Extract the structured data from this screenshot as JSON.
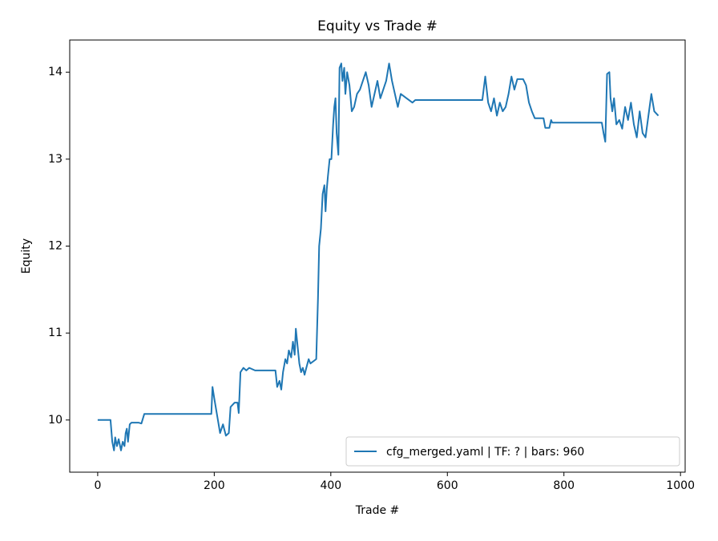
{
  "chart_data": {
    "type": "line",
    "title": "Equity vs Trade #",
    "x_label": "Trade #",
    "y_label": "Equity",
    "series": [
      {
        "name": "cfg_merged.yaml | TF: ? | bars: 960",
        "color": "#1f77b4",
        "x": [
          0,
          22,
          25,
          28,
          30,
          33,
          36,
          40,
          43,
          46,
          48,
          50,
          52,
          55,
          58,
          70,
          75,
          80,
          195,
          197,
          200,
          205,
          210,
          215,
          220,
          225,
          228,
          235,
          240,
          242,
          245,
          250,
          255,
          260,
          270,
          305,
          308,
          312,
          315,
          318,
          322,
          325,
          328,
          332,
          335,
          338,
          340,
          343,
          346,
          349,
          352,
          355,
          358,
          362,
          365,
          375,
          378,
          380,
          383,
          386,
          389,
          391,
          393,
          395,
          398,
          401,
          404,
          406,
          408,
          410,
          413,
          415,
          418,
          420,
          423,
          425,
          428,
          432,
          436,
          440,
          445,
          450,
          455,
          460,
          465,
          470,
          475,
          480,
          485,
          490,
          495,
          500,
          505,
          510,
          515,
          520,
          530,
          540,
          545,
          660,
          665,
          670,
          675,
          680,
          685,
          690,
          695,
          700,
          705,
          710,
          715,
          720,
          730,
          735,
          740,
          745,
          750,
          765,
          768,
          775,
          778,
          780,
          865,
          868,
          871,
          874,
          878,
          880,
          883,
          886,
          890,
          895,
          900,
          905,
          910,
          915,
          920,
          925,
          930,
          935,
          940,
          945,
          950,
          955,
          962
        ],
        "values": [
          10,
          10,
          9.75,
          9.65,
          9.8,
          9.7,
          9.78,
          9.65,
          9.75,
          9.7,
          9.85,
          9.9,
          9.75,
          9.95,
          9.97,
          9.97,
          9.96,
          10.07,
          10.07,
          10.38,
          10.25,
          10.05,
          9.85,
          9.95,
          9.82,
          9.85,
          10.15,
          10.2,
          10.2,
          10.08,
          10.55,
          10.6,
          10.57,
          10.6,
          10.57,
          10.57,
          10.38,
          10.45,
          10.35,
          10.55,
          10.7,
          10.65,
          10.8,
          10.72,
          10.9,
          10.75,
          11.05,
          10.85,
          10.65,
          10.55,
          10.6,
          10.52,
          10.6,
          10.7,
          10.65,
          10.7,
          11.4,
          12.0,
          12.2,
          12.6,
          12.7,
          12.4,
          12.65,
          12.8,
          13.0,
          13.0,
          13.4,
          13.6,
          13.7,
          13.3,
          13.05,
          14.05,
          14.1,
          13.9,
          14.05,
          13.75,
          14.0,
          13.85,
          13.55,
          13.6,
          13.75,
          13.8,
          13.9,
          14.0,
          13.85,
          13.6,
          13.75,
          13.9,
          13.7,
          13.8,
          13.9,
          14.1,
          13.9,
          13.75,
          13.6,
          13.75,
          13.7,
          13.65,
          13.68,
          13.68,
          13.95,
          13.65,
          13.55,
          13.7,
          13.5,
          13.65,
          13.55,
          13.6,
          13.75,
          13.95,
          13.8,
          13.92,
          13.92,
          13.85,
          13.65,
          13.55,
          13.47,
          13.47,
          13.36,
          13.36,
          13.45,
          13.42,
          13.42,
          13.3,
          13.2,
          13.98,
          14.0,
          13.7,
          13.55,
          13.7,
          13.4,
          13.45,
          13.35,
          13.6,
          13.45,
          13.65,
          13.4,
          13.25,
          13.55,
          13.3,
          13.25,
          13.5,
          13.75,
          13.55,
          13.5
        ]
      }
    ],
    "xlim": [
      -48,
      1008
    ],
    "ylim": [
      9.4,
      14.37
    ],
    "xticks": [
      0,
      200,
      400,
      600,
      800,
      1000
    ],
    "yticks": [
      10,
      11,
      12,
      13,
      14
    ],
    "legend": "lower right"
  }
}
